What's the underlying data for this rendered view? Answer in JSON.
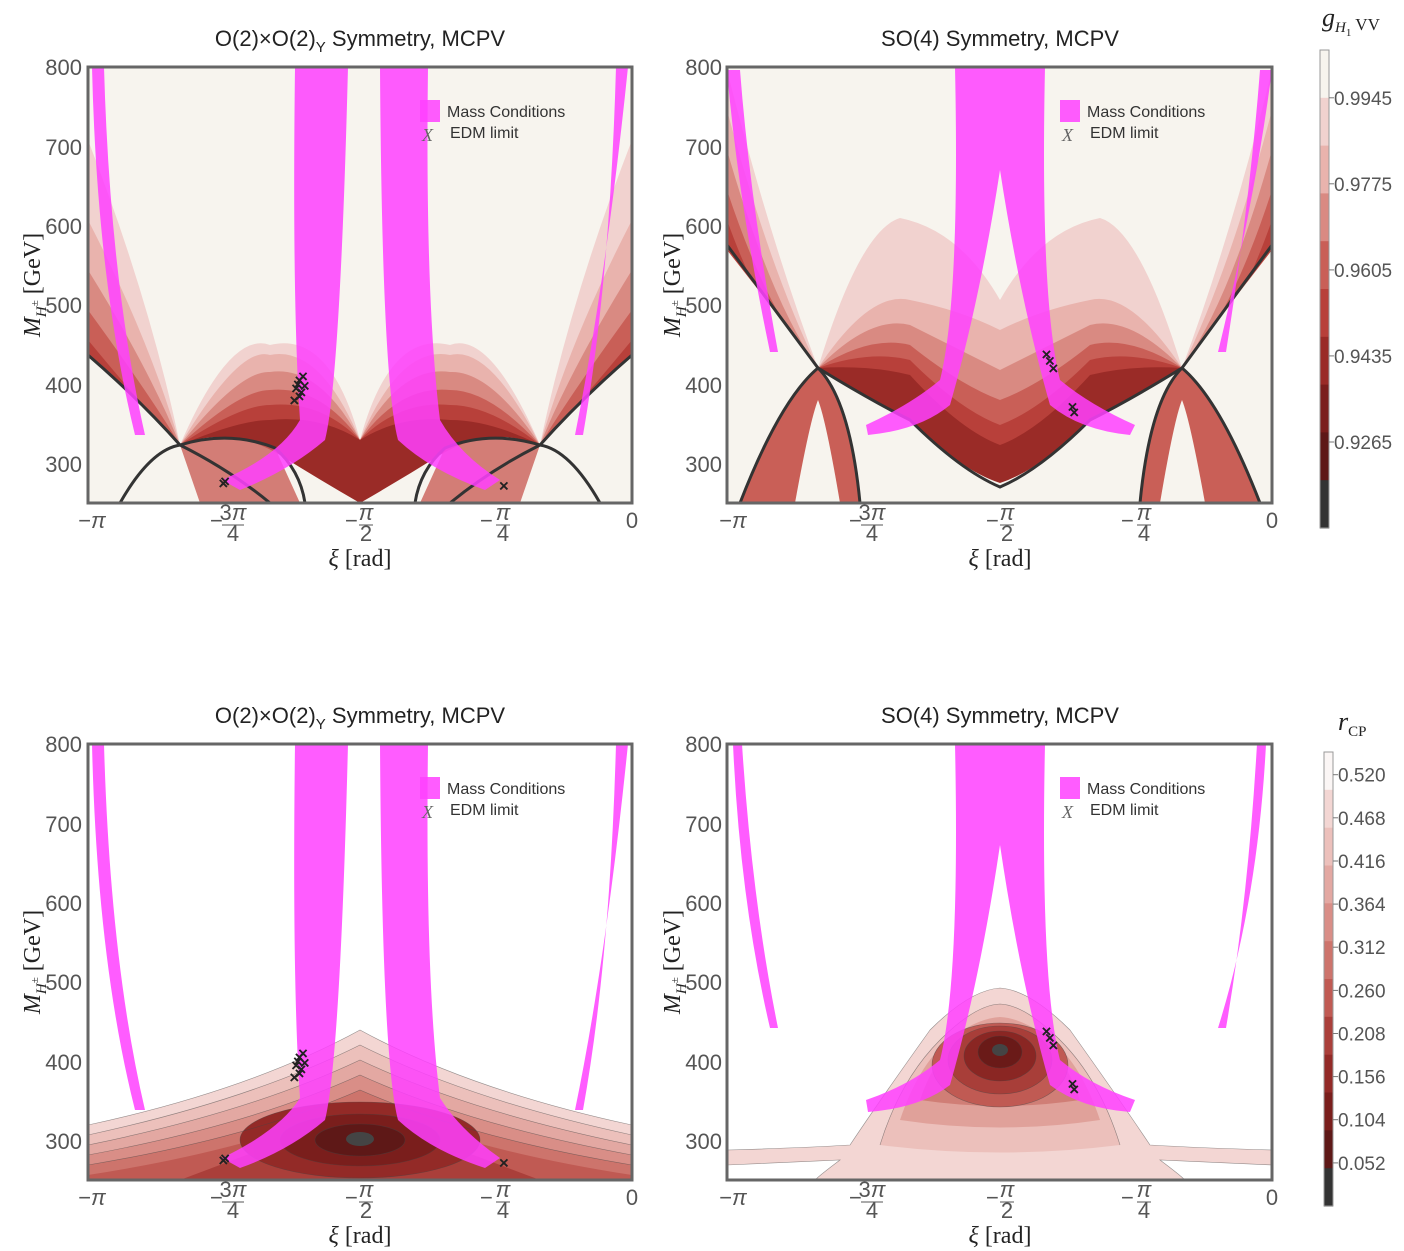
{
  "chart_data": [
    {
      "type": "contour",
      "title": "O(2)×O(2)_Y Symmetry, MCPV",
      "xlabel": "ξ [rad]",
      "ylabel": "M_H± [GeV]",
      "xlim": [
        -3.1416,
        0
      ],
      "ylim": [
        250,
        800
      ],
      "xticks": [
        "−π",
        "−3π/4",
        "−π/2",
        "−π/4",
        "0"
      ],
      "yticks": [
        300,
        400,
        500,
        600,
        700,
        800
      ],
      "legend": [
        "Mass Conditions",
        "EDM limit"
      ],
      "colorbar": "g_H1VV",
      "edm_points": [
        [
          -1.95,
          380
        ],
        [
          -1.94,
          395
        ],
        [
          -1.92,
          405
        ],
        [
          -1.91,
          390
        ],
        [
          -1.9,
          410
        ],
        [
          -1.93,
          400
        ],
        [
          -1.89,
          398
        ],
        [
          -1.92,
          385
        ],
        [
          -2.35,
          278
        ],
        [
          -2.36,
          275
        ],
        [
          -0.74,
          272
        ]
      ]
    },
    {
      "type": "contour",
      "title": "SO(4) Symmetry, MCPV",
      "xlabel": "ξ [rad]",
      "ylabel": "M_H± [GeV]",
      "xlim": [
        -3.1416,
        0
      ],
      "ylim": [
        250,
        800
      ],
      "xticks": [
        "−π",
        "−3π/4",
        "−π/2",
        "−π/4",
        "0"
      ],
      "yticks": [
        300,
        400,
        500,
        600,
        700,
        800
      ],
      "legend": [
        "Mass Conditions",
        "EDM limit"
      ],
      "colorbar": "g_H1VV",
      "edm_points": [
        [
          -1.3,
          438
        ],
        [
          -1.28,
          430
        ],
        [
          -1.26,
          420
        ],
        [
          -1.15,
          372
        ],
        [
          -1.14,
          365
        ]
      ]
    },
    {
      "type": "contour",
      "title": "O(2)×O(2)_Y Symmetry, MCPV",
      "xlabel": "ξ [rad]",
      "ylabel": "M_H± [GeV]",
      "xlim": [
        -3.1416,
        0
      ],
      "ylim": [
        250,
        800
      ],
      "xticks": [
        "−π",
        "−3π/4",
        "−π/2",
        "−π/4",
        "0"
      ],
      "yticks": [
        300,
        400,
        500,
        600,
        700,
        800
      ],
      "legend": [
        "Mass Conditions",
        "EDM limit"
      ],
      "colorbar": "r_CP",
      "edm_points": [
        [
          -1.95,
          380
        ],
        [
          -1.94,
          395
        ],
        [
          -1.92,
          405
        ],
        [
          -1.91,
          390
        ],
        [
          -1.9,
          410
        ],
        [
          -1.93,
          400
        ],
        [
          -1.89,
          398
        ],
        [
          -1.92,
          385
        ],
        [
          -2.35,
          278
        ],
        [
          -2.36,
          275
        ],
        [
          -0.74,
          272
        ]
      ]
    },
    {
      "type": "contour",
      "title": "SO(4) Symmetry, MCPV",
      "xlabel": "ξ [rad]",
      "ylabel": "M_H± [GeV]",
      "xlim": [
        -3.1416,
        0
      ],
      "ylim": [
        250,
        800
      ],
      "xticks": [
        "−π",
        "−3π/4",
        "−π/2",
        "−π/4",
        "0"
      ],
      "yticks": [
        300,
        400,
        500,
        600,
        700,
        800
      ],
      "legend": [
        "Mass Conditions",
        "EDM limit"
      ],
      "colorbar": "r_CP",
      "edm_points": [
        [
          -1.3,
          438
        ],
        [
          -1.28,
          430
        ],
        [
          -1.26,
          420
        ],
        [
          -1.15,
          372
        ],
        [
          -1.14,
          365
        ]
      ]
    }
  ],
  "colorbars": {
    "top": {
      "label_main": "g",
      "label_sub": "H",
      "label_sub2": "1",
      "label_tail": " VV",
      "ticks": [
        "0.9945",
        "0.9775",
        "0.9605",
        "0.9435",
        "0.9265"
      ]
    },
    "bottom": {
      "label_main": "r",
      "label_sub": "CP",
      "ticks": [
        "0.520",
        "0.468",
        "0.416",
        "0.364",
        "0.312",
        "0.260",
        "0.208",
        "0.156",
        "0.104",
        "0.052"
      ]
    }
  },
  "colors": {
    "mass": "#ff40ff",
    "frame": "#666666",
    "cream": "#f7f4ee",
    "edm": "#222222"
  }
}
